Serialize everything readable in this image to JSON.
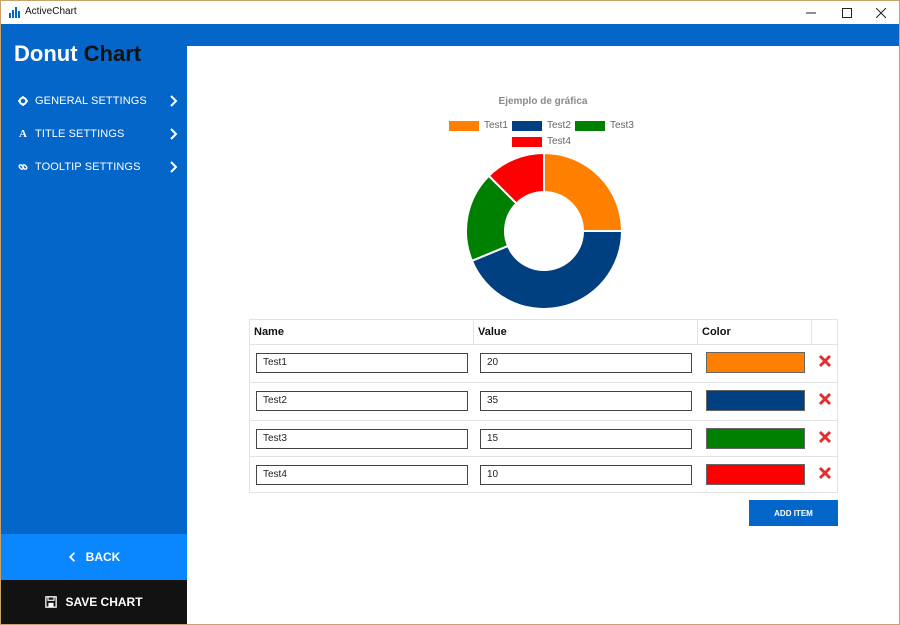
{
  "window": {
    "title": "ActiveChart"
  },
  "sidebar": {
    "brand_white": "Donut",
    "brand_dark": "Chart",
    "items": [
      {
        "label": "GENERAL SETTINGS",
        "icon": "gear-icon"
      },
      {
        "label": "TITLE SETTINGS",
        "icon": "font-icon"
      },
      {
        "label": "TOOLTIP SETTINGS",
        "icon": "link-icon"
      }
    ],
    "back_label": "BACK",
    "save_label": "SAVE CHART"
  },
  "chart_data": {
    "type": "pie",
    "title": "Ejemplo de gráfica",
    "categories": [
      "Test1",
      "Test2",
      "Test3",
      "Test4"
    ],
    "values": [
      20,
      35,
      15,
      10
    ],
    "colors": [
      "#ff8000",
      "#003f80",
      "#008000",
      "#ff0000"
    ],
    "legend_position": "top",
    "inner_radius_ratio": 0.5
  },
  "table": {
    "headers": {
      "name": "Name",
      "value": "Value",
      "color": "Color"
    },
    "rows": [
      {
        "name": "Test1",
        "value": "20",
        "color": "#ff8000"
      },
      {
        "name": "Test2",
        "value": "35",
        "color": "#003f80"
      },
      {
        "name": "Test3",
        "value": "15",
        "color": "#008000"
      },
      {
        "name": "Test4",
        "value": "10",
        "color": "#ff0000"
      }
    ]
  },
  "add_item_label": "ADD ITEM"
}
